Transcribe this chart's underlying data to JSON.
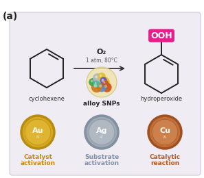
{
  "bg_color": "#f0ecf4",
  "outer_bg": "#ffffff",
  "panel_label": "(a)",
  "o2_label": "O₂",
  "conditions": "1 atm, 80°C",
  "reactant_label": "cyclohexene",
  "product_label": "hydroperoxide",
  "catalyst_label": "alloy SNPs",
  "ooh_text": "OOH",
  "ooh_bg": "#e91e8c",
  "ooh_text_color": "#ffffff",
  "au_symbol": "Au",
  "au_label1": "Catalyst",
  "au_label2": "activation",
  "au_text_color": "#c8860a",
  "au_face": "#d4a820",
  "au_edge": "#b88c10",
  "au_inner": "#e8c040",
  "ag_symbol": "Ag",
  "ag_label1": "Substrate",
  "ag_label2": "activation",
  "ag_text_color": "#8090a8",
  "ag_face": "#a0a8b4",
  "ag_edge": "#8090a0",
  "ag_inner": "#c0c8d0",
  "cu_symbol": "Cu",
  "cu_label1": "Catalytic",
  "cu_label2": "reaction",
  "cu_text_color": "#b85820",
  "cu_face": "#c07038",
  "cu_edge": "#a05020",
  "cu_inner": "#d89060",
  "arrow_color": "#333333",
  "molecule_color": "#222222"
}
